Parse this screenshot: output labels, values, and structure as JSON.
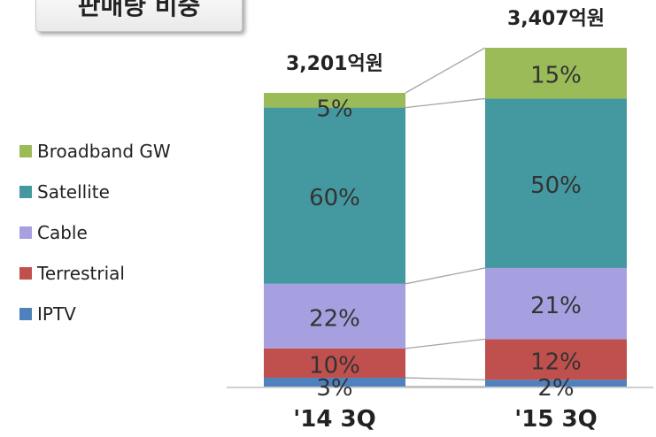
{
  "header": {
    "title": "판매량 비중"
  },
  "chart_data": {
    "type": "bar",
    "stacked": true,
    "categories": [
      "'14 3Q",
      "'15 3Q"
    ],
    "totals": [
      "3,201억원",
      "3,407억원"
    ],
    "series": [
      {
        "name": "IPTV",
        "color": "#4e81bd",
        "values": [
          3,
          2
        ]
      },
      {
        "name": "Terrestrial",
        "color": "#c0504d",
        "values": [
          10,
          12
        ]
      },
      {
        "name": "Cable",
        "color": "#a6a0e0",
        "values": [
          22,
          21
        ]
      },
      {
        "name": "Satellite",
        "color": "#44989f",
        "values": [
          60,
          50
        ]
      },
      {
        "name": "Broadband GW",
        "color": "#9bbb59",
        "values": [
          5,
          15
        ]
      }
    ],
    "legend_order": [
      "Broadband GW",
      "Satellite",
      "Cable",
      "Terrestrial",
      "IPTV"
    ],
    "legend_position": "left",
    "connector_color": "#a6a6a6",
    "axis_color": "#bfbfbf"
  }
}
